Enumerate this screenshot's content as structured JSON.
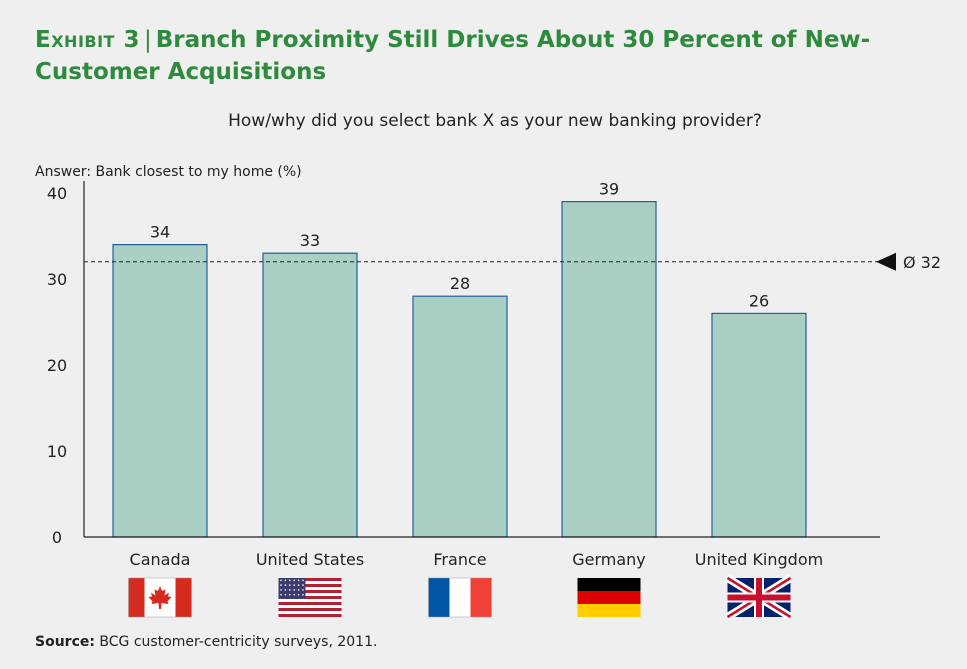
{
  "header": {
    "exhibit": "Exhibit 3",
    "separator": "|",
    "title": "Branch Proximity Still Drives About 30 Percent of New-Customer Acquisitions"
  },
  "source": {
    "label": "Source:",
    "text": "BCG customer-centricity surveys, 2011."
  },
  "colors": {
    "bar_fill": "#a9cfc3",
    "bar_stroke": "#1f5fa0",
    "title": "#2e8a3c",
    "background": "#efefef"
  },
  "chart_data": {
    "type": "bar",
    "title": "How/why did you select bank X as your new banking provider?",
    "ylabel": "Answer: Bank closest to my home (%)",
    "xlabel": "",
    "categories": [
      "Canada",
      "United States",
      "France",
      "Germany",
      "United Kingdom"
    ],
    "values": [
      34,
      33,
      28,
      39,
      26
    ],
    "data_labels": [
      "34",
      "33",
      "28",
      "39",
      "26"
    ],
    "flag_icons": [
      "canada-flag-icon",
      "united-states-flag-icon",
      "france-flag-icon",
      "germany-flag-icon",
      "united-kingdom-flag-icon"
    ],
    "ylim": [
      0,
      40
    ],
    "yticks": [
      0,
      10,
      20,
      30,
      40
    ],
    "reference_line": {
      "value": 32,
      "label": "Ø 32",
      "style": "dashed"
    },
    "grid": false,
    "legend": "none"
  }
}
